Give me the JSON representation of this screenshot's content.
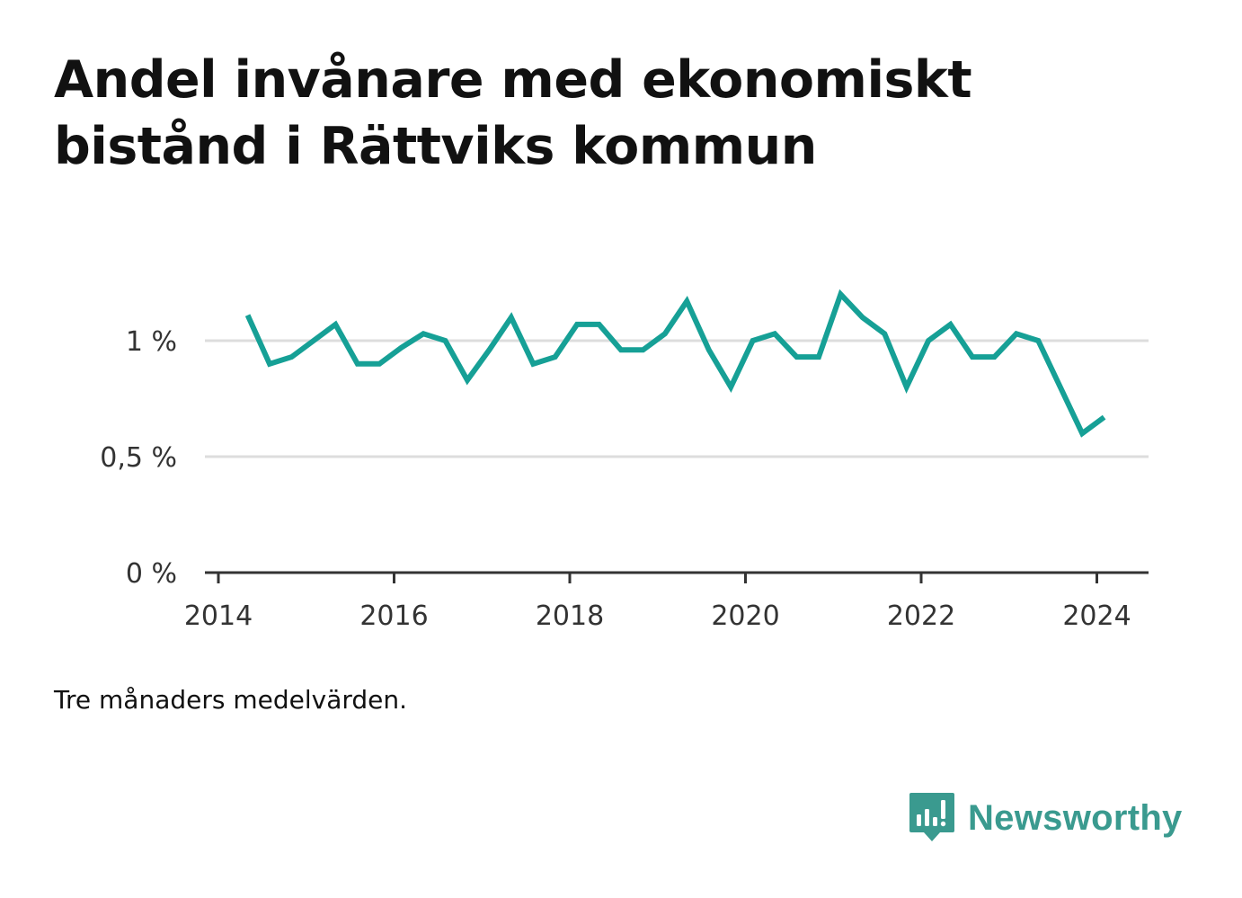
{
  "title": "Andel invånare med ekonomiskt bistånd i Rättviks kommun",
  "footnote": "Tre månaders medelvärden.",
  "brand": {
    "name": "Newsworthy",
    "logo_icon": "newsworthy-bar-chart-speech-bubble-icon",
    "color": "#3a9a8f"
  },
  "colors": {
    "line": "#16a096",
    "grid": "#dddddd",
    "axis": "#333333"
  },
  "chart_data": {
    "type": "line",
    "title": "Andel invånare med ekonomiskt bistånd i Rättviks kommun",
    "xlabel": "",
    "ylabel": "",
    "x": [
      "2014-05",
      "2014-08",
      "2014-11",
      "2015-02",
      "2015-05",
      "2015-08",
      "2015-11",
      "2016-02",
      "2016-05",
      "2016-08",
      "2016-11",
      "2017-02",
      "2017-05",
      "2017-08",
      "2017-11",
      "2018-02",
      "2018-05",
      "2018-08",
      "2018-11",
      "2019-02",
      "2019-05",
      "2019-08",
      "2019-11",
      "2020-02",
      "2020-05",
      "2020-08",
      "2020-11",
      "2021-02",
      "2021-05",
      "2021-08",
      "2021-11",
      "2022-02",
      "2022-05",
      "2022-08",
      "2022-11",
      "2023-02",
      "2023-05",
      "2023-08",
      "2023-11",
      "2024-02"
    ],
    "series": [
      {
        "values": [
          1.11,
          0.9,
          0.93,
          1.0,
          1.07,
          0.9,
          0.9,
          0.97,
          1.03,
          1.0,
          0.83,
          0.96,
          1.1,
          0.9,
          0.93,
          1.07,
          1.07,
          0.96,
          0.96,
          1.03,
          1.17,
          0.96,
          0.8,
          1.0,
          1.03,
          0.93,
          0.93,
          1.2,
          1.1,
          1.03,
          0.8,
          1.0,
          1.07,
          0.93,
          0.93,
          1.03,
          1.0,
          0.8,
          0.6,
          0.67
        ]
      }
    ],
    "xlim": [
      "2014-01",
      "2024-12"
    ],
    "ylim": [
      0,
      1.25
    ],
    "x_ticks": [
      "2014",
      "2016",
      "2018",
      "2020",
      "2022",
      "2024"
    ],
    "y_ticks": [
      {
        "value": 0,
        "label": "0 %"
      },
      {
        "value": 0.5,
        "label": "0,5 %"
      },
      {
        "value": 1,
        "label": "1 %"
      }
    ],
    "grid": "horizontal",
    "legend": "none"
  }
}
